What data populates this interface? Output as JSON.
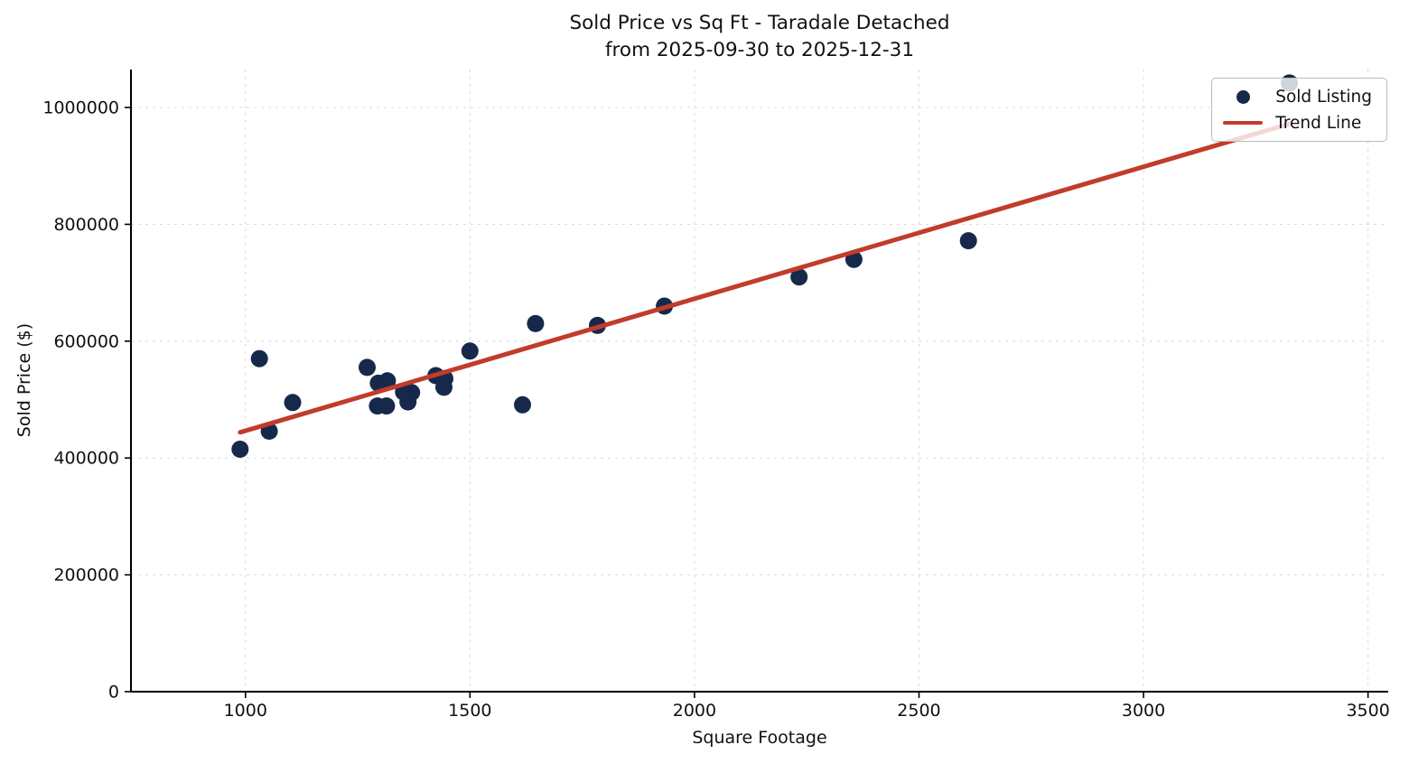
{
  "figure": {
    "title_line1": "Sold Price vs Sq Ft - Taradale Detached",
    "title_line2": "from 2025-09-30 to 2025-12-31"
  },
  "chart_data": {
    "type": "scatter",
    "title": "Sold Price vs Sq Ft - Taradale Detached\nfrom 2025-09-30 to 2025-12-31",
    "xlabel": "Square Footage",
    "ylabel": "Sold Price ($)",
    "xlim": [
      745,
      3545
    ],
    "ylim": [
      0,
      1065000
    ],
    "x_ticks": [
      1000,
      1500,
      2000,
      2500,
      3000,
      3500
    ],
    "y_ticks": [
      0,
      200000,
      400000,
      600000,
      800000,
      1000000
    ],
    "grid": true,
    "legend_position": "upper right",
    "colors": {
      "point": "#16294b",
      "trend": "#c23b2b",
      "grid": "#d9d9d9",
      "spine": "#000000",
      "text": "#111111"
    },
    "series": [
      {
        "name": "Sold Listing",
        "type": "scatter",
        "color": "#16294b",
        "points": [
          [
            988,
            415000
          ],
          [
            1031,
            570000
          ],
          [
            1053,
            446000
          ],
          [
            1105,
            495000
          ],
          [
            1271,
            555000
          ],
          [
            1294,
            489000
          ],
          [
            1296,
            528000
          ],
          [
            1314,
            489000
          ],
          [
            1316,
            532000
          ],
          [
            1352,
            513000
          ],
          [
            1362,
            496000
          ],
          [
            1370,
            512000
          ],
          [
            1424,
            541000
          ],
          [
            1442,
            521000
          ],
          [
            1444,
            536000
          ],
          [
            1500,
            583000
          ],
          [
            1617,
            491000
          ],
          [
            1646,
            630000
          ],
          [
            1784,
            627000
          ],
          [
            1933,
            660000
          ],
          [
            2233,
            710000
          ],
          [
            2355,
            740000
          ],
          [
            2610,
            772000
          ],
          [
            3325,
            1042000
          ]
        ]
      },
      {
        "name": "Trend Line",
        "type": "line",
        "color": "#c23b2b",
        "points": [
          [
            988,
            444000
          ],
          [
            3325,
            972000
          ]
        ]
      }
    ]
  }
}
